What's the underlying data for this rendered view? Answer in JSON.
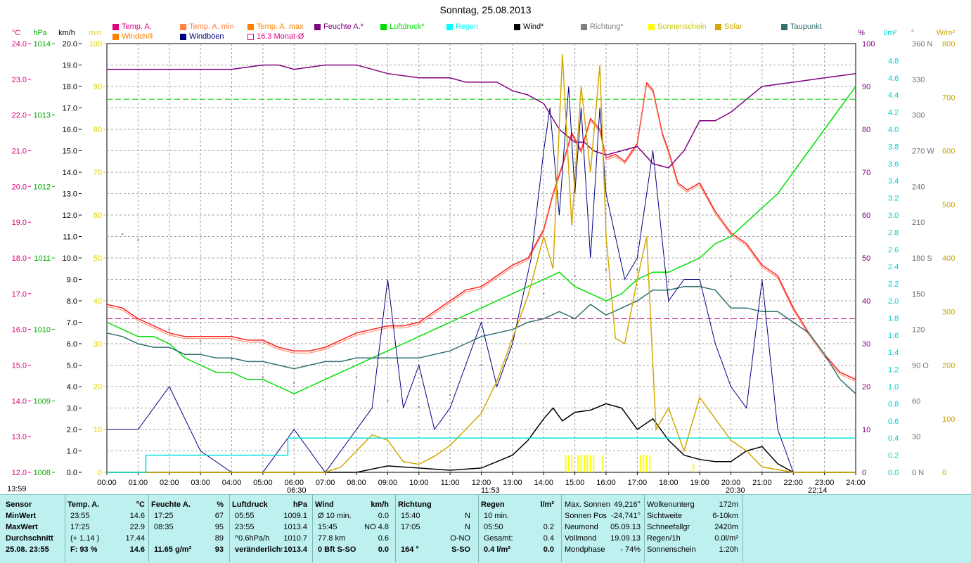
{
  "chart_data": {
    "type": "line",
    "title": "Sonntag, 25.08.2013",
    "x_ticks": [
      "00:00",
      "01:00",
      "02:00",
      "03:00",
      "04:00",
      "05:00",
      "06:00",
      "07:00",
      "08:00",
      "09:00",
      "10:00",
      "11:00",
      "12:00",
      "13:00",
      "14:00",
      "15:00",
      "16:00",
      "17:00",
      "18:00",
      "19:00",
      "20:00",
      "21:00",
      "22:00",
      "23:00",
      "24:00"
    ],
    "axes": {
      "temp": {
        "unit": "°C",
        "min": 12.0,
        "max": 24.0,
        "ticks": [
          "24.0",
          "23.0",
          "22.0",
          "21.0",
          "20.0",
          "19.0",
          "18.0",
          "17.0",
          "16.0",
          "15.0",
          "14.0",
          "13.0",
          "12.0"
        ],
        "color": "#e0007f"
      },
      "pressure": {
        "unit": "hPa",
        "min": 1008,
        "max": 1014,
        "ticks": [
          "1014",
          "1013",
          "1012",
          "1011",
          "1010",
          "1009",
          "1008"
        ],
        "color": "#00b000"
      },
      "wind": {
        "unit": "km/h",
        "min": 0,
        "max": 20,
        "ticks": [
          "20.0",
          "19.0",
          "18.0",
          "17.0",
          "16.0",
          "15.0",
          "14.0",
          "13.0",
          "12.0",
          "11.0",
          "10.0",
          "9.0",
          "8.0",
          "7.0",
          "6.0",
          "5.0",
          "4.0",
          "3.0",
          "2.0",
          "1.0",
          "0.0"
        ],
        "color": "#000000"
      },
      "sunshine": {
        "unit": "min",
        "ticks": [
          "100",
          "90",
          "80",
          "70",
          "60",
          "50",
          "40",
          "30",
          "20",
          "10",
          "0"
        ],
        "color": "#e0d000"
      },
      "humidity": {
        "unit": "%",
        "min": 0,
        "max": 100,
        "ticks": [
          "100",
          "90",
          "80",
          "70",
          "60",
          "50",
          "40",
          "30",
          "20",
          "10",
          "0"
        ],
        "color": "#800080"
      },
      "rain": {
        "unit": "l/m²",
        "min": 0,
        "max": 5,
        "ticks": [
          "4.8",
          "4.6",
          "4.4",
          "4.2",
          "4.0",
          "3.8",
          "3.6",
          "3.4",
          "3.2",
          "3.0",
          "2.8",
          "2.6",
          "2.4",
          "2.2",
          "2.0",
          "1.8",
          "1.6",
          "1.4",
          "1.2",
          "1.0",
          "0.8",
          "0.6",
          "0.4",
          "0.2",
          "0.0"
        ],
        "color": "#00d0d0"
      },
      "direction": {
        "unit": "°",
        "ticks": [
          "360 N",
          "330",
          "300",
          "270 W",
          "240",
          "210",
          "180 S",
          "150",
          "120",
          "90 O",
          "60",
          "30",
          "0 N"
        ],
        "color": "#707070"
      },
      "solar": {
        "unit": "W/m²",
        "min": 0,
        "max": 800,
        "ticks": [
          "800",
          "700",
          "600",
          "500",
          "400",
          "300",
          "200",
          "100",
          "0"
        ],
        "color": "#c8a000"
      }
    },
    "legend": [
      {
        "label": "Temp. A.",
        "color": "#e0007f"
      },
      {
        "label": "Temp. A. min",
        "color": "#ff8040"
      },
      {
        "label": "Temp. A. max",
        "color": "#ff8000"
      },
      {
        "label": "Feuchte A.*",
        "color": "#800080"
      },
      {
        "label": "Luftdruck*",
        "color": "#00e000"
      },
      {
        "label": "Regen",
        "color": "#00ffff"
      },
      {
        "label": "Wind*",
        "color": "#000000"
      },
      {
        "label": "Richtung*",
        "color": "#808080"
      },
      {
        "label": "Sonnenschein",
        "color": "#ffff00"
      },
      {
        "label": "Solar",
        "color": "#d4a800"
      },
      {
        "label": "Taupunkt",
        "color": "#307070"
      },
      {
        "label": "Windchill",
        "color": "#ff8000"
      },
      {
        "label": "Windböen",
        "color": "#000080"
      },
      {
        "label": "16.3 Monat-Ø",
        "color": "#e0007f"
      }
    ],
    "reference_lines": {
      "monthly_avg_temp": 16.3,
      "humidity_ref": 87,
      "sunshine_ref": 0
    },
    "series": [
      {
        "name": "Temp. A.",
        "axis": "temp",
        "color": "#ff2020",
        "x": [
          0,
          0.5,
          1,
          1.5,
          2,
          2.5,
          3,
          3.5,
          4,
          4.5,
          5,
          5.5,
          6,
          6.5,
          7,
          7.5,
          8,
          8.5,
          9,
          9.5,
          10,
          10.5,
          11,
          11.5,
          12,
          12.5,
          13,
          13.5,
          14,
          14.3,
          14.6,
          14.9,
          15.2,
          15.5,
          15.8,
          16,
          16.3,
          16.6,
          17,
          17.3,
          17.5,
          17.8,
          18,
          18.3,
          18.6,
          19,
          19.5,
          20,
          20.5,
          21,
          21.5,
          22,
          22.5,
          23,
          23.5,
          24
        ],
        "y": [
          16.7,
          16.6,
          16.3,
          16.1,
          15.9,
          15.8,
          15.8,
          15.8,
          15.8,
          15.7,
          15.7,
          15.5,
          15.4,
          15.4,
          15.5,
          15.7,
          15.9,
          16.0,
          16.1,
          16.1,
          16.2,
          16.5,
          16.8,
          17.1,
          17.2,
          17.5,
          17.8,
          18.0,
          18.8,
          19.8,
          20.6,
          21.5,
          21.0,
          21.9,
          21.6,
          20.8,
          20.9,
          20.7,
          21.2,
          22.9,
          22.7,
          21.5,
          21.0,
          20.1,
          19.9,
          20.1,
          19.3,
          18.7,
          18.4,
          17.8,
          17.5,
          16.6,
          15.9,
          15.3,
          14.8,
          14.6
        ]
      },
      {
        "name": "Feuchte A.*",
        "axis": "humidity",
        "color": "#800080",
        "x": [
          0,
          1,
          2,
          3,
          4,
          5,
          5.5,
          6,
          7,
          8,
          9,
          10,
          11,
          11.5,
          12,
          12.5,
          13,
          13.5,
          14,
          14.5,
          15,
          15.3,
          15.6,
          16,
          16.5,
          17,
          17.5,
          18,
          18.5,
          19,
          19.5,
          20,
          20.5,
          21,
          22,
          23,
          24
        ],
        "y": [
          94,
          94,
          94,
          94,
          94,
          95,
          95,
          94,
          95,
          95,
          93,
          92,
          92,
          91,
          91,
          91,
          89,
          88,
          86,
          80,
          77,
          77,
          75,
          74,
          75,
          76,
          72,
          71,
          75,
          82,
          82,
          84,
          87,
          90,
          91,
          92,
          93
        ]
      },
      {
        "name": "Luftdruck*",
        "axis": "pressure",
        "color": "#00e000",
        "x": [
          0,
          0.5,
          1,
          1.5,
          2,
          2.5,
          3,
          3.5,
          4,
          4.5,
          5,
          5.5,
          6,
          6.5,
          7,
          7.5,
          8,
          8.5,
          9,
          9.5,
          10,
          10.5,
          11,
          11.5,
          12,
          12.5,
          13,
          13.5,
          14,
          14.5,
          15,
          15.5,
          16,
          16.5,
          17,
          17.5,
          18,
          18.5,
          19,
          19.5,
          20,
          20.5,
          21,
          21.5,
          22,
          22.5,
          23,
          23.5,
          24
        ],
        "y": [
          1010.1,
          1010.0,
          1009.9,
          1009.9,
          1009.8,
          1009.6,
          1009.5,
          1009.4,
          1009.4,
          1009.3,
          1009.3,
          1009.2,
          1009.1,
          1009.2,
          1009.3,
          1009.4,
          1009.5,
          1009.6,
          1009.7,
          1009.8,
          1009.9,
          1010.0,
          1010.1,
          1010.2,
          1010.3,
          1010.4,
          1010.5,
          1010.6,
          1010.7,
          1010.8,
          1010.6,
          1010.5,
          1010.4,
          1010.5,
          1010.7,
          1010.8,
          1010.8,
          1010.9,
          1011.0,
          1011.2,
          1011.3,
          1011.5,
          1011.7,
          1011.9,
          1012.2,
          1012.5,
          1012.8,
          1013.1,
          1013.4
        ]
      },
      {
        "name": "Taupunkt",
        "axis": "temp",
        "color": "#307070",
        "x": [
          0,
          0.5,
          1,
          1.5,
          2,
          2.5,
          3,
          3.5,
          4,
          4.5,
          5,
          5.5,
          6,
          6.5,
          7,
          7.5,
          8,
          8.5,
          9,
          9.5,
          10,
          10.5,
          11,
          11.5,
          12,
          12.5,
          13,
          13.5,
          14,
          14.5,
          15,
          15.5,
          16,
          16.5,
          17,
          17.5,
          18,
          18.5,
          19,
          19.5,
          20,
          20.5,
          21,
          21.5,
          22,
          22.5,
          23,
          23.5,
          24
        ],
        "y": [
          15.9,
          15.8,
          15.6,
          15.5,
          15.5,
          15.3,
          15.3,
          15.2,
          15.2,
          15.1,
          15.1,
          15.0,
          14.9,
          15.0,
          15.1,
          15.1,
          15.2,
          15.2,
          15.2,
          15.2,
          15.2,
          15.3,
          15.4,
          15.6,
          15.8,
          15.9,
          16.0,
          16.2,
          16.3,
          16.5,
          16.3,
          16.7,
          16.4,
          16.6,
          16.8,
          17.1,
          17.1,
          17.2,
          17.2,
          17.1,
          16.6,
          16.6,
          16.5,
          16.5,
          16.2,
          15.9,
          15.3,
          14.6,
          14.2
        ]
      },
      {
        "name": "Wind*",
        "axis": "wind",
        "color": "#000000",
        "x": [
          0,
          8,
          9,
          10,
          11,
          12,
          12.5,
          13,
          13.5,
          14,
          14.3,
          14.6,
          15,
          15.5,
          16,
          16.5,
          17,
          17.5,
          18,
          18.5,
          19,
          19.5,
          20,
          20.5,
          21,
          21.5,
          22,
          24
        ],
        "y": [
          0,
          0,
          0.3,
          0.2,
          0.1,
          0.2,
          0.5,
          0.8,
          1.5,
          2.5,
          3.0,
          2.4,
          2.8,
          2.9,
          3.2,
          3.0,
          2.0,
          2.5,
          1.5,
          0.8,
          0.6,
          0.5,
          0.5,
          1.0,
          1.2,
          0.4,
          0,
          0
        ]
      },
      {
        "name": "Windböen",
        "axis": "wind",
        "color": "#000080",
        "x": [
          0,
          1,
          2,
          3,
          4,
          5,
          6,
          7,
          8,
          8.5,
          9,
          9.5,
          10,
          10.5,
          11,
          11.5,
          12,
          12.5,
          13,
          13.3,
          13.6,
          14,
          14.2,
          14.5,
          14.8,
          15,
          15.2,
          15.5,
          15.8,
          16,
          16.3,
          16.6,
          17,
          17.5,
          18,
          18.5,
          19,
          19.5,
          20,
          20.5,
          21,
          21.5,
          22,
          24
        ],
        "y": [
          2.0,
          2.0,
          4.0,
          1.0,
          0,
          0,
          2.0,
          0,
          2.0,
          3.0,
          9.0,
          3.0,
          5.0,
          2.0,
          3.0,
          5.0,
          7.0,
          4.0,
          6.0,
          8.0,
          10.0,
          15.0,
          17.0,
          12.0,
          18.0,
          13.0,
          17.0,
          10.0,
          17.0,
          13.0,
          11.0,
          9.0,
          10.0,
          15.0,
          8.0,
          9.0,
          9.0,
          6.0,
          4.0,
          3.0,
          9.0,
          2.0,
          0,
          0
        ]
      },
      {
        "name": "Solar",
        "axis": "solar",
        "color": "#d4a800",
        "x": [
          0,
          6,
          7,
          7.5,
          8,
          8.5,
          9,
          9.5,
          10,
          10.5,
          11,
          11.5,
          12,
          12.5,
          13,
          13.5,
          14,
          14.3,
          14.6,
          14.9,
          15.2,
          15.5,
          15.8,
          16,
          16.3,
          16.6,
          17,
          17.3,
          17.6,
          18,
          18.5,
          19,
          19.5,
          20,
          20.5,
          21,
          22,
          24
        ],
        "y": [
          0,
          0,
          0,
          10,
          40,
          70,
          60,
          20,
          15,
          30,
          50,
          80,
          110,
          170,
          250,
          330,
          440,
          380,
          780,
          460,
          720,
          560,
          760,
          440,
          250,
          240,
          360,
          440,
          80,
          120,
          40,
          140,
          100,
          60,
          40,
          10,
          0,
          0
        ]
      },
      {
        "name": "Regen",
        "axis": "rain",
        "color": "#00e0e0",
        "x": [
          0,
          1.25,
          1.25,
          5.8,
          5.8,
          24
        ],
        "y": [
          0,
          0,
          0.2,
          0.2,
          0.4,
          0.4
        ]
      },
      {
        "name": "Richtung*",
        "axis": "direction",
        "color": "#808080",
        "x": [
          0.5,
          1,
          2,
          3,
          4,
          5,
          6,
          7,
          8,
          9,
          10,
          11,
          12,
          13,
          14,
          15,
          16,
          17,
          18,
          19,
          20,
          21
        ],
        "y": [
          200,
          195,
          120,
          110,
          95,
          80,
          75,
          70,
          80,
          60,
          55,
          65,
          90,
          110,
          150,
          165,
          170,
          170,
          160,
          170,
          165,
          160
        ]
      },
      {
        "name": "Sonnenschein",
        "axis": "sunshine",
        "color": "#ffff00",
        "x": [
          14.7,
          14.8,
          14.9,
          15.1,
          15.2,
          15.3,
          15.4,
          15.5,
          15.6,
          15.9,
          17.1,
          17.2,
          17.3,
          17.4,
          18.8
        ],
        "y": [
          4,
          4,
          4,
          4,
          4,
          4,
          4,
          4,
          4,
          4,
          4,
          4,
          4,
          4,
          2
        ]
      }
    ]
  },
  "time_markers": {
    "sunrise": "06:30",
    "noon": "11:53",
    "sunset": "20:30",
    "moon": "22:14"
  },
  "time_label": "13:59",
  "stats": {
    "col1": {
      "header": "Sensor",
      "rows": [
        "MinWert",
        "MaxWert",
        "Durchschnitt",
        "25.08. 23:55"
      ]
    },
    "col2": {
      "header": "Temp. A.",
      "unit": "°C",
      "rows": [
        [
          "23:55",
          "14.6"
        ],
        [
          "17:25",
          "22.9"
        ],
        [
          "(+ 1.14 )",
          "17.44"
        ],
        [
          "F: 93 %",
          "14.6"
        ]
      ]
    },
    "col3": {
      "header": "Feuchte A.",
      "unit": "%",
      "rows": [
        [
          "17:25",
          "67"
        ],
        [
          "08:35",
          "95"
        ],
        [
          "",
          "89"
        ],
        [
          "11.65 g/m³",
          "93"
        ]
      ]
    },
    "col4": {
      "header": "Luftdruck",
      "unit": "hPa",
      "rows": [
        [
          "05:55",
          "1009.1"
        ],
        [
          "23:55",
          "1013.4"
        ],
        [
          "^0.6hPa/h",
          "1010.7"
        ],
        [
          "veränderlich",
          "↑1013.4"
        ]
      ]
    },
    "col5": {
      "header": "Wind",
      "unit": "km/h",
      "rows": [
        [
          "Ø 10 min.",
          "0.0"
        ],
        [
          "15:45",
          "NO 4.8"
        ],
        [
          "77.8 km",
          "0.6"
        ],
        [
          "0 Bft S-SO",
          "0.0"
        ]
      ]
    },
    "col6": {
      "header": "Richtung",
      "rows": [
        [
          "15:40",
          "N"
        ],
        [
          "17:05",
          "N"
        ],
        [
          "",
          "O-NO"
        ],
        [
          "164 °",
          "S-SO"
        ]
      ]
    },
    "col7": {
      "header": "Regen",
      "unit": "l/m²",
      "rows": [
        [
          "10 min.",
          ""
        ],
        [
          "05:50",
          "0.2"
        ],
        [
          "Gesamt:",
          "0.4"
        ],
        [
          "0.4 l/m²",
          "0.0"
        ]
      ]
    },
    "col8": {
      "rows": [
        [
          "Max. Sonnen",
          "49,216°"
        ],
        [
          "Sonnen Pos",
          "-24,741°"
        ],
        [
          "Neumond",
          "05.09.13"
        ],
        [
          "Vollmond",
          "19.09.13"
        ],
        [
          "Mondphase",
          "- 74%"
        ]
      ]
    },
    "col9": {
      "rows": [
        [
          "Wolkenunterg",
          "172m"
        ],
        [
          "Sichtweite",
          "6-10km"
        ],
        [
          "Schneefallgr",
          "2420m"
        ],
        [
          "Regen/1h",
          "0.0l/m²"
        ],
        [
          "Sonnenschein",
          "1:20h"
        ]
      ]
    }
  }
}
